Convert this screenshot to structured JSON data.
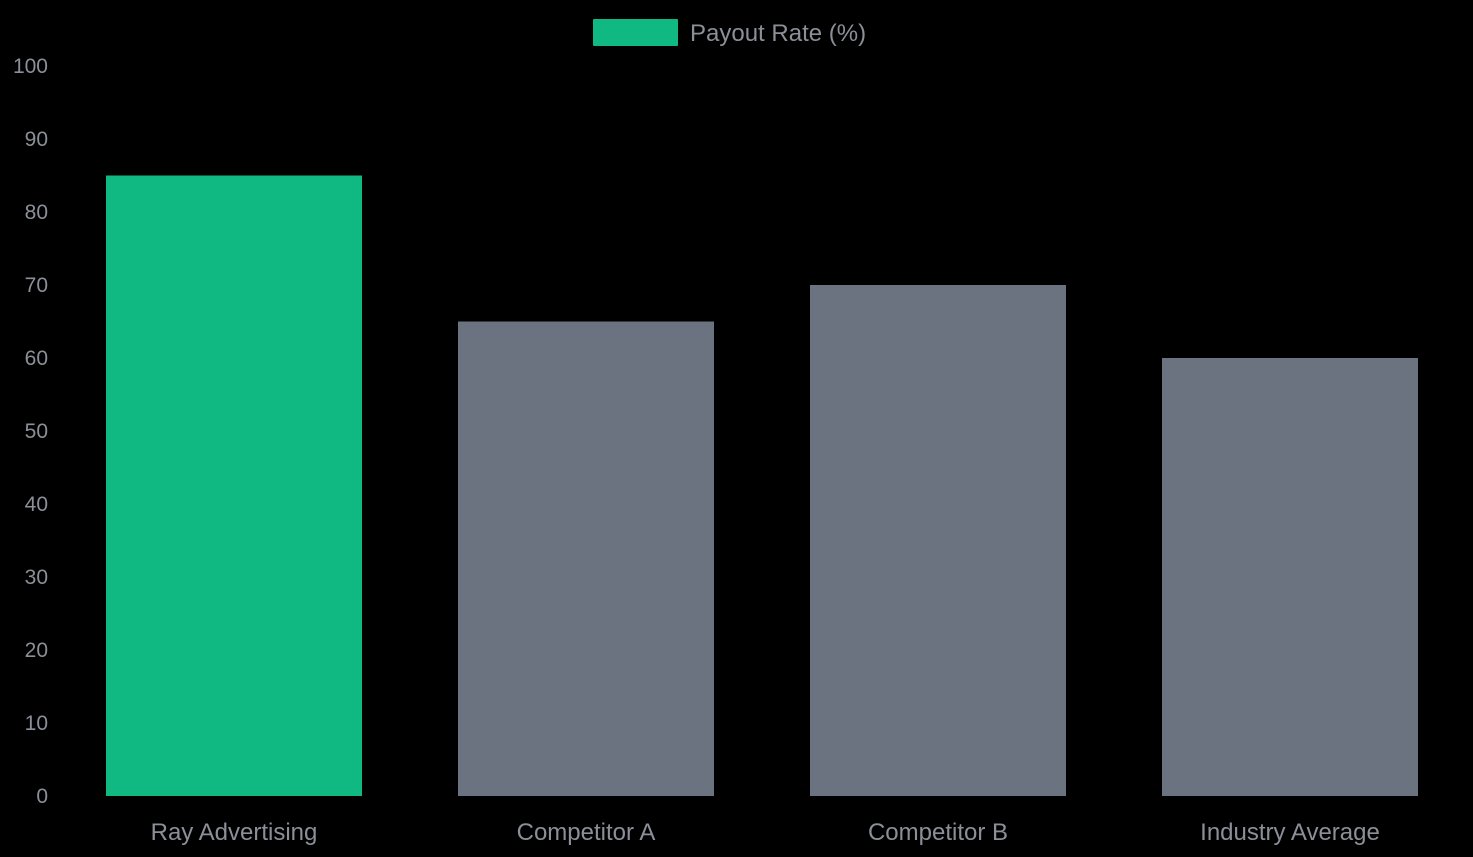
{
  "chart_data": {
    "type": "bar",
    "categories": [
      "Ray Advertising",
      "Competitor A",
      "Competitor B",
      "Industry Average"
    ],
    "series": [
      {
        "name": "Payout Rate (%)",
        "values": [
          85,
          65,
          70,
          60
        ],
        "colors": [
          "#10b981",
          "#6b7280",
          "#6b7280",
          "#6b7280"
        ]
      }
    ],
    "ylim": [
      0,
      100
    ],
    "yticks": [
      0,
      10,
      20,
      30,
      40,
      50,
      60,
      70,
      80,
      90,
      100
    ],
    "grid": false,
    "legend_position": "top-center",
    "legend_color": "#10b981"
  }
}
